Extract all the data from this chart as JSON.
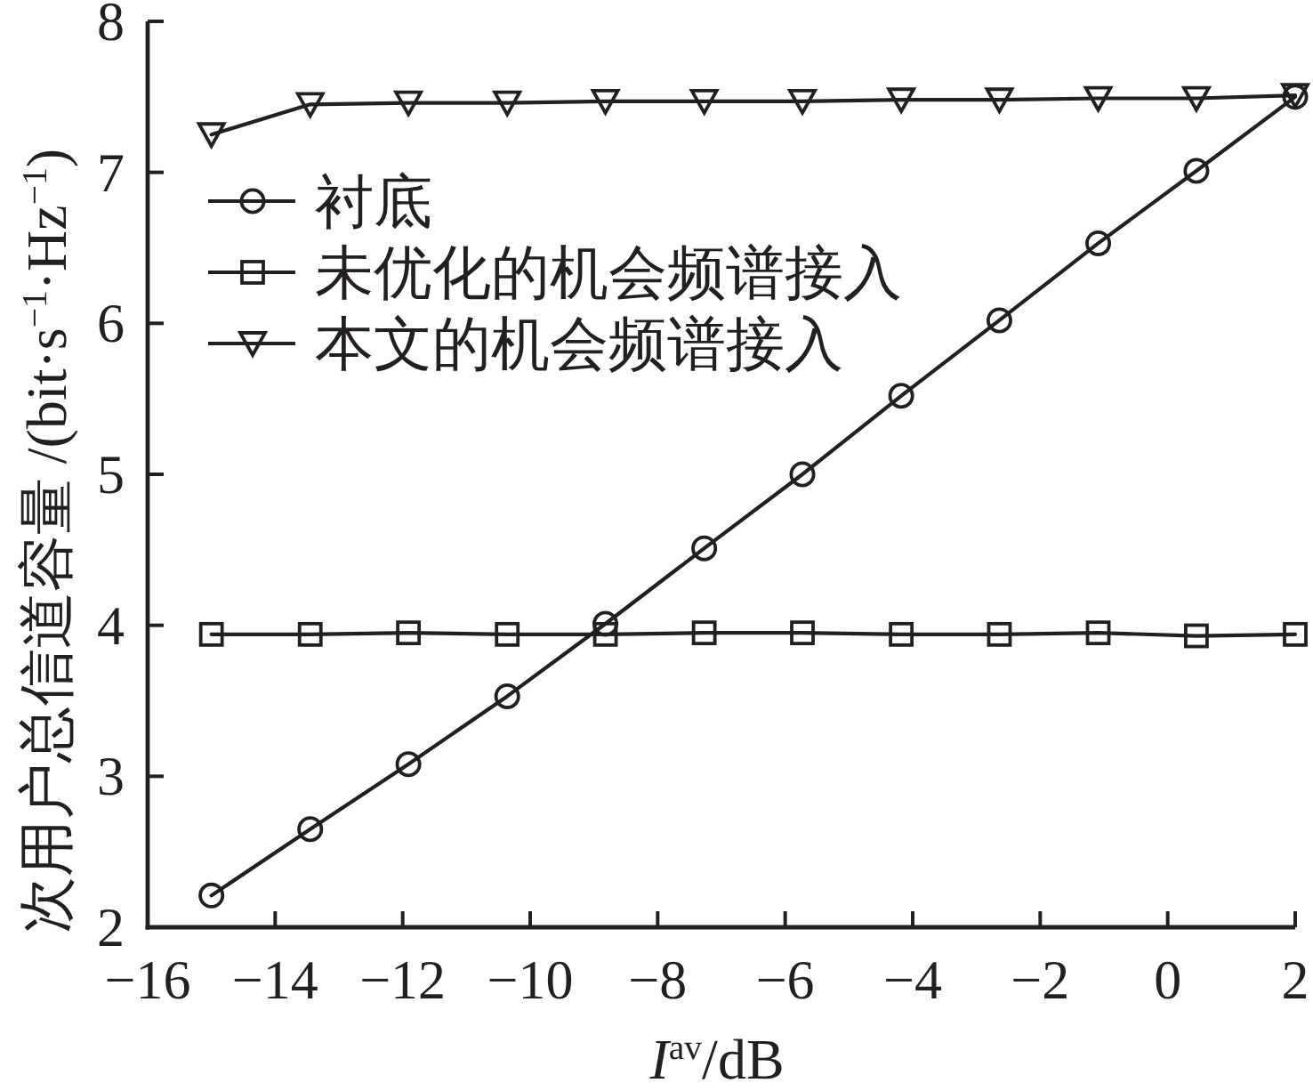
{
  "chart_data": {
    "type": "line",
    "xlabel": "*I*$^{av}$/dB",
    "ylabel": "次用户总信道容量 /(bit·s$^{−1}$·Hz$^{−1}$)",
    "x": [
      -15,
      -13.45,
      -11.91,
      -10.36,
      -8.82,
      -7.27,
      -5.73,
      -4.18,
      -2.64,
      -1.09,
      0.45,
      2
    ],
    "series": [
      {
        "name": "衬底",
        "color": "#231f20",
        "marker": "circle",
        "values": [
          2.21,
          2.65,
          3.08,
          3.53,
          4.01,
          4.51,
          5.0,
          5.52,
          6.02,
          6.53,
          7.01,
          7.5
        ]
      },
      {
        "name": "未优化的机会频谱接入",
        "color": "#231f20",
        "marker": "square",
        "values": [
          3.94,
          3.94,
          3.95,
          3.94,
          3.94,
          3.95,
          3.95,
          3.94,
          3.94,
          3.95,
          3.93,
          3.94
        ]
      },
      {
        "name": "本文的机会频谱接入",
        "color": "#231f20",
        "marker": "triangle",
        "values": [
          7.25,
          7.45,
          7.46,
          7.46,
          7.47,
          7.47,
          7.47,
          7.48,
          7.48,
          7.49,
          7.49,
          7.51
        ]
      }
    ],
    "xlim": [
      -16,
      2
    ],
    "ylim": [
      2,
      8
    ],
    "xticks": [
      -16,
      -14,
      -12,
      -10,
      -8,
      -6,
      -4,
      -2,
      0,
      2
    ],
    "yticks": [
      2,
      3,
      4,
      5,
      6,
      7,
      8
    ],
    "legend": "top left"
  }
}
